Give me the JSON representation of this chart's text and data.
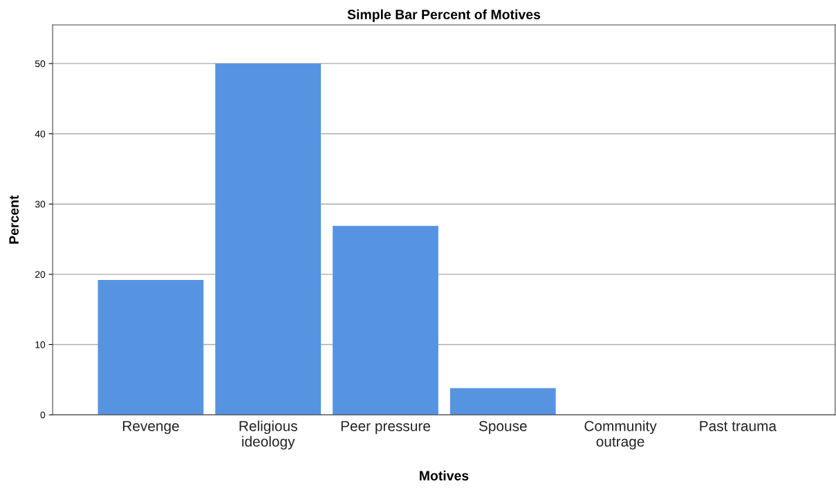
{
  "chart_data": {
    "type": "bar",
    "title": "Simple Bar Percent of Motives",
    "xlabel": "Motives",
    "ylabel": "Percent",
    "categories": [
      "Revenge",
      "Religious\nideology",
      "Peer pressure",
      "Spouse",
      "Community\noutrage",
      "Past trauma"
    ],
    "values": [
      19.2,
      50.0,
      26.9,
      3.8,
      0,
      0
    ],
    "color": "#5694e2",
    "ylim": [
      0,
      55.5
    ],
    "yticks": [
      0,
      10,
      20,
      30,
      40,
      50
    ],
    "grid": "y",
    "legend": false
  }
}
